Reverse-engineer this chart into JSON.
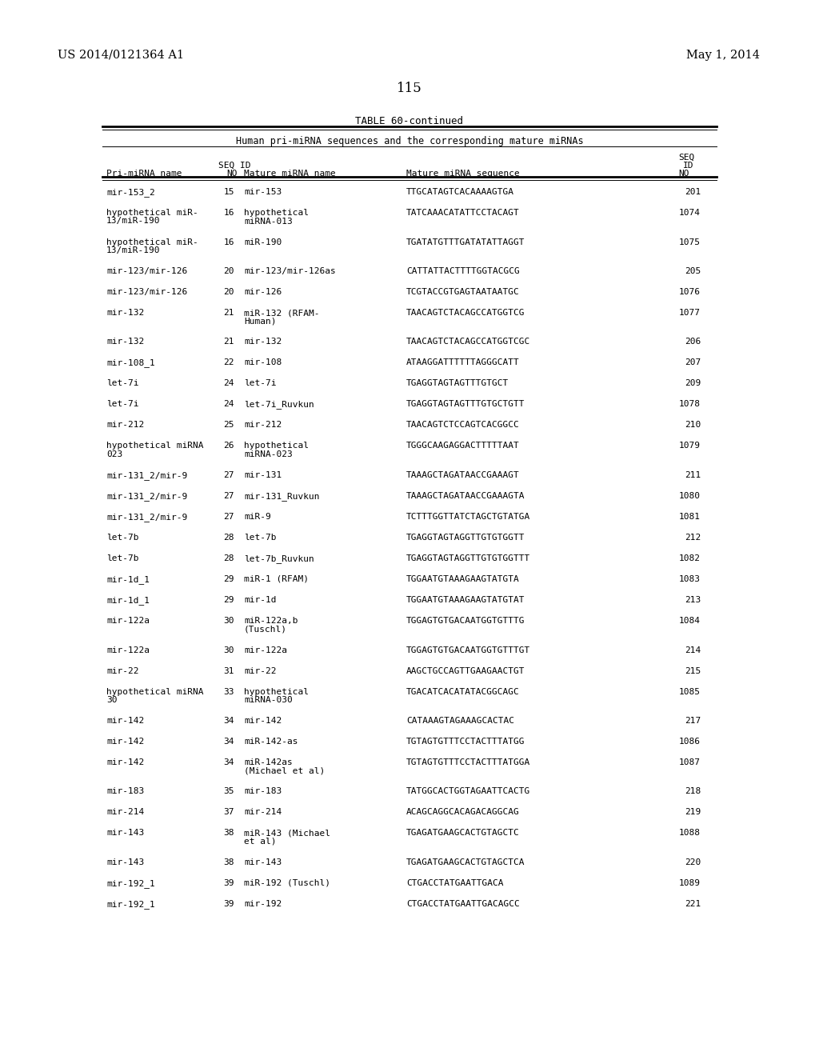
{
  "patent_number": "US 2014/0121364 A1",
  "patent_date": "May 1, 2014",
  "page_number": "115",
  "table_title": "TABLE 60-continued",
  "table_subtitle": "Human pri-miRNA sequences and the corresponding mature miRNAs",
  "rows": [
    [
      "mir-153_2",
      "15",
      "mir-153",
      "TTGCATAGTCACAAAAGTGA",
      "201"
    ],
    [
      "hypothetical miR-\n13/miR-190",
      "16",
      "hypothetical\nmiRNA-013",
      "TATCAAACATATTCCTACAGT",
      "1074"
    ],
    [
      "hypothetical miR-\n13/miR-190",
      "16",
      "miR-190",
      "TGATATGTTTGATATATTAGGT",
      "1075"
    ],
    [
      "mir-123/mir-126",
      "20",
      "mir-123/mir-126as",
      "CATTATTACTTTTGGTACGCG",
      "205"
    ],
    [
      "mir-123/mir-126",
      "20",
      "mir-126",
      "TCGTACCGTGAGTAATAATGC",
      "1076"
    ],
    [
      "mir-132",
      "21",
      "miR-132 (RFAM-\nHuman)",
      "TAACAGTCTACAGCCATGGTCG",
      "1077"
    ],
    [
      "mir-132",
      "21",
      "mir-132",
      "TAACAGTCTACAGCCATGGTCGC",
      "206"
    ],
    [
      "mir-108_1",
      "22",
      "mir-108",
      "ATAAGGATTTTTTAGGGCATT",
      "207"
    ],
    [
      "let-7i",
      "24",
      "let-7i",
      "TGAGGTAGTAGTTTGTGCT",
      "209"
    ],
    [
      "let-7i",
      "24",
      "let-7i_Ruvkun",
      "TGAGGTAGTAGTTTGTGCTGTT",
      "1078"
    ],
    [
      "mir-212",
      "25",
      "mir-212",
      "TAACAGTCTCCAGTCACGGCC",
      "210"
    ],
    [
      "hypothetical miRNA\n023",
      "26",
      "hypothetical\nmiRNA-023",
      "TGGGCAAGAGGACTTTTTAAT",
      "1079"
    ],
    [
      "mir-131_2/mir-9",
      "27",
      "mir-131",
      "TAAAGCTAGATAACCGAAAGT",
      "211"
    ],
    [
      "mir-131_2/mir-9",
      "27",
      "mir-131_Ruvkun",
      "TAAAGCTAGATAACCGAAAGTA",
      "1080"
    ],
    [
      "mir-131_2/mir-9",
      "27",
      "miR-9",
      "TCTTTGGTTATCTAGCTGTATGA",
      "1081"
    ],
    [
      "let-7b",
      "28",
      "let-7b",
      "TGAGGTAGTAGGTTGTGTGGTT",
      "212"
    ],
    [
      "let-7b",
      "28",
      "let-7b_Ruvkun",
      "TGAGGTAGTAGGTTGTGTGGTTT",
      "1082"
    ],
    [
      "mir-1d_1",
      "29",
      "miR-1 (RFAM)",
      "TGGAATGTAAAGAAGTATGTA",
      "1083"
    ],
    [
      "mir-1d_1",
      "29",
      "mir-1d",
      "TGGAATGTAAAGAAGTATGTAT",
      "213"
    ],
    [
      "mir-122a",
      "30",
      "miR-122a,b\n(Tuschl)",
      "TGGAGTGTGACAATGGTGTTTG",
      "1084"
    ],
    [
      "mir-122a",
      "30",
      "mir-122a",
      "TGGAGTGTGACAATGGTGTTTGT",
      "214"
    ],
    [
      "mir-22",
      "31",
      "mir-22",
      "AAGCTGCCAGTTGAAGAACTGT",
      "215"
    ],
    [
      "hypothetical miRNA\n30",
      "33",
      "hypothetical\nmiRNA-030",
      "TGACATCACATATACGGCAGC",
      "1085"
    ],
    [
      "mir-142",
      "34",
      "mir-142",
      "CATAAAGTAGAAAGCACTAC",
      "217"
    ],
    [
      "mir-142",
      "34",
      "miR-142-as",
      "TGTAGTGTTTCCTACTTTATGG",
      "1086"
    ],
    [
      "mir-142",
      "34",
      "miR-142as\n(Michael et al)",
      "TGTAGTGTTTCCTACTTTATGGA",
      "1087"
    ],
    [
      "mir-183",
      "35",
      "mir-183",
      "TATGGCACTGGTAGAATTCACTG",
      "218"
    ],
    [
      "mir-214",
      "37",
      "mir-214",
      "ACAGCAGGCACAGACAGGCAG",
      "219"
    ],
    [
      "mir-143",
      "38",
      "miR-143 (Michael\net al)",
      "TGAGATGAAGCACTGTAGCTC",
      "1088"
    ],
    [
      "mir-143",
      "38",
      "mir-143",
      "TGAGATGAAGCACTGTAGCTCA",
      "220"
    ],
    [
      "mir-192_1",
      "39",
      "miR-192 (Tuschl)",
      "CTGACCTATGAATTGACA",
      "1089"
    ],
    [
      "mir-192_1",
      "39",
      "mir-192",
      "CTGACCTATGAATTGACAGCC",
      "221"
    ]
  ],
  "bg_color": "#ffffff",
  "text_color": "#000000"
}
